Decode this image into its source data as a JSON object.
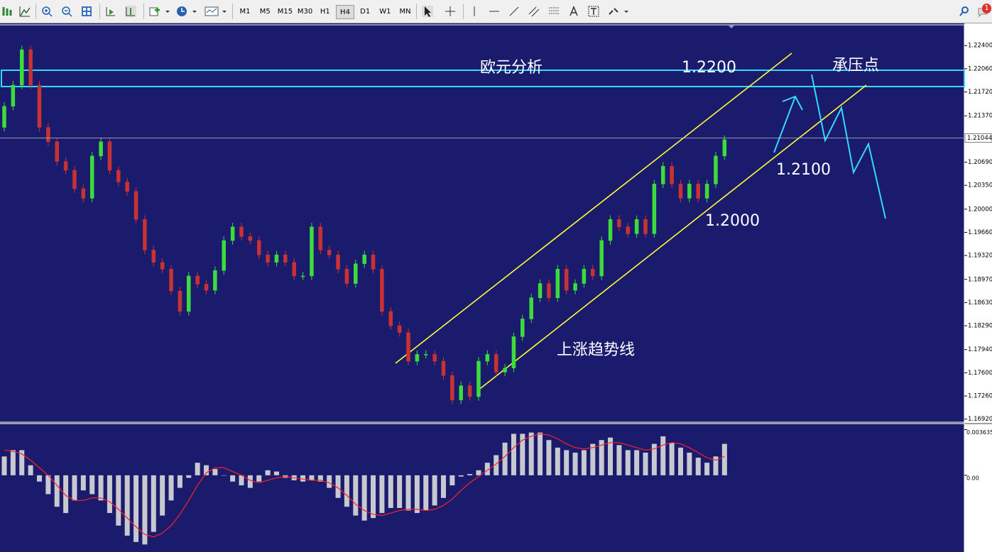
{
  "toolbar": {
    "timeframes": [
      "M1",
      "M5",
      "M15",
      "M30",
      "H1",
      "H4",
      "D1",
      "W1",
      "MN"
    ],
    "badge": 1
  },
  "chart_data": [
    {
      "type": "candlestick",
      "up_color": "#3cdc3c",
      "down_color": "#c83232",
      "open": [
        1.212,
        1.2151,
        1.2182,
        1.2234,
        1.2182,
        1.212,
        1.2099,
        1.207,
        1.2057,
        1.203,
        1.2016,
        1.2078,
        1.2099,
        1.2057,
        1.204,
        1.2026,
        1.1985,
        1.194,
        1.1922,
        1.1912,
        1.188,
        1.185,
        1.1902,
        1.189,
        1.1881,
        1.191,
        1.1954,
        1.1974,
        1.196,
        1.1954,
        1.1933,
        1.1922,
        1.1933,
        1.1922,
        1.1902,
        1.1902,
        1.1974,
        1.194,
        1.1933,
        1.1912,
        1.1891,
        1.192,
        1.1933,
        1.1912,
        1.185,
        1.1829,
        1.1819,
        1.1777,
        1.1787,
        1.1787,
        1.1777,
        1.1756,
        1.172,
        1.1741,
        1.1725,
        1.1777,
        1.1787,
        1.1761,
        1.1767,
        1.1813,
        1.1839,
        1.187,
        1.1891,
        1.187,
        1.1912,
        1.1881,
        1.1891,
        1.1912,
        1.1902,
        1.1954,
        1.1985,
        1.1974,
        1.1964,
        1.1985,
        1.1964,
        1.2037,
        1.2063,
        1.2037,
        1.2016,
        1.2037,
        1.2016,
        1.2037,
        1.2078
      ],
      "high": [
        1.2157,
        1.2188,
        1.224,
        1.224,
        1.2188,
        1.2126,
        1.2105,
        1.2076,
        1.2063,
        1.2036,
        1.2084,
        1.2105,
        1.2105,
        1.2063,
        1.2046,
        1.2032,
        1.1991,
        1.1946,
        1.1928,
        1.1918,
        1.1886,
        1.1908,
        1.1908,
        1.1896,
        1.1916,
        1.196,
        1.198,
        1.198,
        1.1966,
        1.196,
        1.1939,
        1.1939,
        1.1939,
        1.1928,
        1.1908,
        1.198,
        1.198,
        1.1946,
        1.1939,
        1.1918,
        1.1926,
        1.1939,
        1.1939,
        1.1918,
        1.1856,
        1.1835,
        1.1825,
        1.1793,
        1.1793,
        1.1793,
        1.1783,
        1.1762,
        1.1747,
        1.1747,
        1.1783,
        1.1793,
        1.1793,
        1.1773,
        1.1819,
        1.1845,
        1.1876,
        1.1897,
        1.1897,
        1.1918,
        1.1918,
        1.1897,
        1.1918,
        1.1918,
        1.196,
        1.1991,
        1.1991,
        1.198,
        1.1991,
        1.1991,
        1.2043,
        1.2069,
        1.2069,
        1.2043,
        1.2043,
        1.2043,
        1.2043,
        1.2084,
        1.2108
      ],
      "low": [
        1.2114,
        1.2145,
        1.2176,
        1.2176,
        1.2114,
        1.2093,
        1.2064,
        1.2051,
        1.2024,
        1.201,
        1.201,
        1.2072,
        1.2051,
        1.2034,
        1.202,
        1.1979,
        1.1934,
        1.1916,
        1.1906,
        1.1874,
        1.1844,
        1.1844,
        1.1884,
        1.1875,
        1.1875,
        1.1904,
        1.1948,
        1.1954,
        1.1948,
        1.1927,
        1.1916,
        1.1916,
        1.1916,
        1.1896,
        1.1896,
        1.1896,
        1.1934,
        1.1927,
        1.1906,
        1.1885,
        1.1885,
        1.1914,
        1.1906,
        1.1844,
        1.1823,
        1.1813,
        1.1771,
        1.1771,
        1.1781,
        1.1771,
        1.175,
        1.1714,
        1.1714,
        1.1719,
        1.1719,
        1.1771,
        1.1755,
        1.1755,
        1.1761,
        1.1807,
        1.1833,
        1.1864,
        1.1864,
        1.1864,
        1.1875,
        1.1875,
        1.1885,
        1.1896,
        1.1896,
        1.1948,
        1.1968,
        1.1958,
        1.1958,
        1.1958,
        1.1958,
        1.2031,
        1.2031,
        1.201,
        1.201,
        1.201,
        1.201,
        1.2031,
        1.2072
      ],
      "close": [
        1.2151,
        1.2182,
        1.2234,
        1.2182,
        1.212,
        1.2099,
        1.207,
        1.2057,
        1.203,
        1.2016,
        1.2078,
        1.2099,
        1.2057,
        1.204,
        1.2026,
        1.1985,
        1.194,
        1.1922,
        1.1912,
        1.188,
        1.185,
        1.1902,
        1.189,
        1.1881,
        1.191,
        1.1954,
        1.1974,
        1.196,
        1.1954,
        1.1933,
        1.1922,
        1.1933,
        1.1922,
        1.1902,
        1.1902,
        1.1974,
        1.194,
        1.1933,
        1.1912,
        1.1891,
        1.192,
        1.1933,
        1.1912,
        1.185,
        1.1829,
        1.1819,
        1.1777,
        1.1787,
        1.1787,
        1.1777,
        1.1756,
        1.172,
        1.1741,
        1.1725,
        1.1777,
        1.1787,
        1.1761,
        1.1767,
        1.1813,
        1.1839,
        1.187,
        1.1891,
        1.187,
        1.1912,
        1.1881,
        1.1891,
        1.1912,
        1.1902,
        1.1954,
        1.1985,
        1.1974,
        1.1964,
        1.1985,
        1.1964,
        1.2037,
        1.2063,
        1.2037,
        1.2016,
        1.2037,
        1.2016,
        1.2037,
        1.2078,
        1.2102
      ],
      "ylim": [
        1.16886,
        1.22694
      ],
      "yticks": [
        {
          "value": 1.224,
          "label": "1.22400"
        },
        {
          "value": 1.2206,
          "label": "1.22060"
        },
        {
          "value": 1.2172,
          "label": "1.21720"
        },
        {
          "value": 1.2137,
          "label": "1.21370"
        },
        {
          "value": 1.2069,
          "label": "1.20690"
        },
        {
          "value": 1.2035,
          "label": "1.20350"
        },
        {
          "value": 1.2,
          "label": "1.20000"
        },
        {
          "value": 1.1966,
          "label": "1.19660"
        },
        {
          "value": 1.1932,
          "label": "1.19320"
        },
        {
          "value": 1.1897,
          "label": "1.18970"
        },
        {
          "value": 1.1863,
          "label": "1.18630"
        },
        {
          "value": 1.1829,
          "label": "1.18290"
        },
        {
          "value": 1.1794,
          "label": "1.17940"
        },
        {
          "value": 1.176,
          "label": "1.17600"
        },
        {
          "value": 1.1726,
          "label": "1.17260"
        },
        {
          "value": 1.1692,
          "label": "1.16920"
        }
      ],
      "current_price": {
        "value": 1.21044,
        "label": "1.21044"
      },
      "annotations": [
        "欧元分析",
        "1.2200",
        "承压点",
        "1.2100",
        "1.2000",
        "上涨趋势线"
      ]
    },
    {
      "type": "macd",
      "ylim": [
        -0.0061,
        0.004
      ],
      "yticks": [
        {
          "value": 0.003635,
          "label": "0.003635"
        },
        {
          "value": 0,
          "label": "0.00"
        }
      ],
      "series": [
        {
          "type": "bar",
          "color": "#c8c8d0",
          "values": [
            0.0015,
            0.002,
            0.002,
            0.0008,
            -0.0005,
            -0.0015,
            -0.0025,
            -0.003,
            -0.002,
            -0.0012,
            -0.0015,
            -0.002,
            -0.003,
            -0.004,
            -0.0048,
            -0.0053,
            -0.0055,
            -0.0045,
            -0.0032,
            -0.002,
            -0.001,
            -0.0002,
            0.001,
            0.0008,
            0.0005,
            0.0,
            -0.0005,
            -0.0008,
            -0.001,
            -0.0005,
            0.0004,
            0.0003,
            -0.0002,
            -0.0004,
            -0.0005,
            -0.0004,
            -0.0005,
            -0.001,
            -0.0018,
            -0.0025,
            -0.0032,
            -0.0036,
            -0.0034,
            -0.003,
            -0.0026,
            -0.0026,
            -0.0028,
            -0.003,
            -0.0028,
            -0.0024,
            -0.0018,
            -0.0008,
            -0.0001,
            0.0001,
            0.0004,
            0.001,
            0.0016,
            0.0026,
            0.0033,
            0.0033,
            0.0034,
            0.0034,
            0.0028,
            0.0022,
            0.002,
            0.0018,
            0.002,
            0.0025,
            0.0028,
            0.003,
            0.0024,
            0.002,
            0.002,
            0.0018,
            0.0025,
            0.0031,
            0.0026,
            0.0022,
            0.0018,
            0.0014,
            0.001,
            0.0015,
            0.0025
          ]
        },
        {
          "type": "line",
          "color": "#ff2020",
          "values": [
            0.002,
            0.0019,
            0.0017,
            0.0012,
            0.0006,
            0.0,
            -0.0008,
            -0.0016,
            -0.002,
            -0.002,
            -0.0018,
            -0.0018,
            -0.0021,
            -0.0027,
            -0.0034,
            -0.0041,
            -0.0047,
            -0.0049,
            -0.0046,
            -0.004,
            -0.0031,
            -0.002,
            -0.0008,
            0.0002,
            0.0006,
            0.0006,
            0.0003,
            0.0,
            -0.0004,
            -0.0006,
            -0.0004,
            -0.0002,
            -0.0001,
            -0.0002,
            -0.0003,
            -0.0004,
            -0.0004,
            -0.0006,
            -0.001,
            -0.0016,
            -0.0023,
            -0.0028,
            -0.0031,
            -0.0032,
            -0.003,
            -0.0028,
            -0.0027,
            -0.0027,
            -0.0028,
            -0.0027,
            -0.0024,
            -0.0019,
            -0.0012,
            -0.0006,
            -0.0001,
            0.0004,
            0.0009,
            0.0015,
            0.0022,
            0.0028,
            0.0031,
            0.0033,
            0.0032,
            0.0029,
            0.0025,
            0.0022,
            0.0021,
            0.0022,
            0.0024,
            0.0026,
            0.0026,
            0.0024,
            0.0022,
            0.002,
            0.0021,
            0.0024,
            0.0026,
            0.0025,
            0.0022,
            0.0018,
            0.0014,
            0.0012,
            0.0015
          ]
        }
      ]
    }
  ]
}
